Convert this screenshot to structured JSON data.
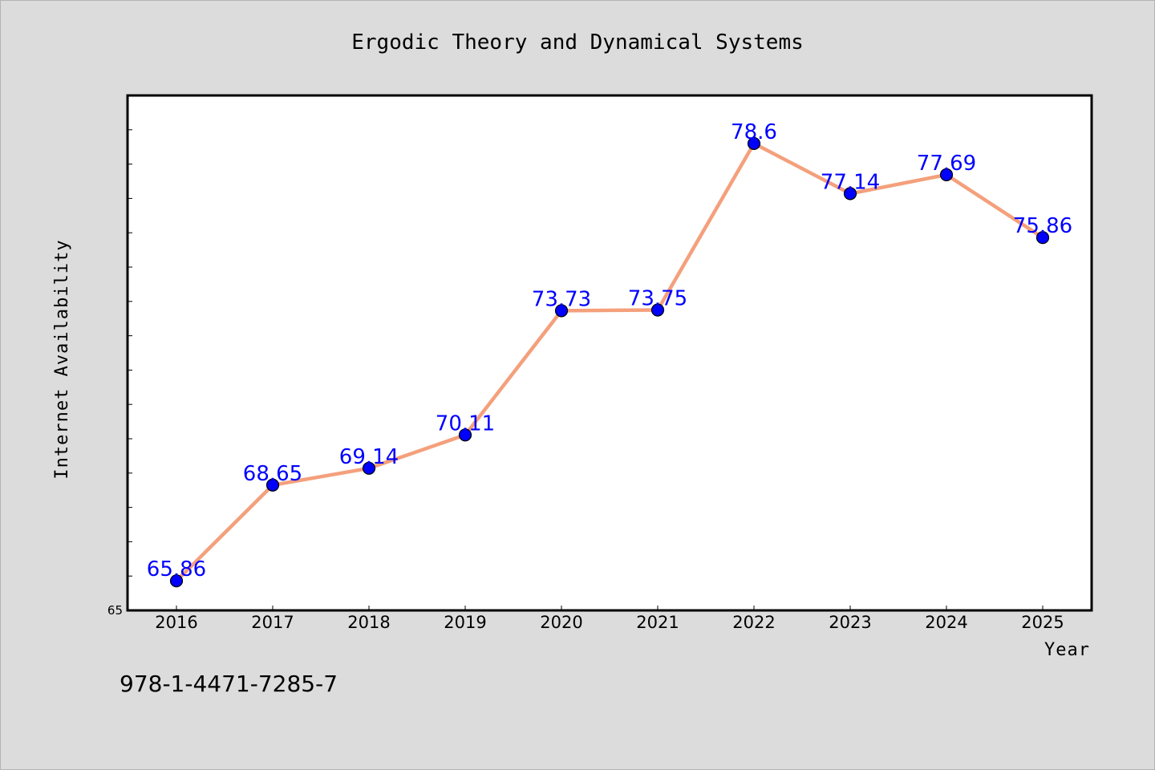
{
  "chart_data": {
    "type": "line",
    "title": "Ergodic Theory and Dynamical Systems",
    "xlabel": "Year",
    "ylabel": "Internet Availability",
    "categories": [
      "2016",
      "2017",
      "2018",
      "2019",
      "2020",
      "2021",
      "2022",
      "2023",
      "2024",
      "2025"
    ],
    "series": [
      {
        "values": [
          65.86,
          68.65,
          69.14,
          70.11,
          73.73,
          73.75,
          78.6,
          77.14,
          77.69,
          75.86
        ],
        "data_labels": [
          "65.86",
          "68.65",
          "69.14",
          "70.11",
          "73.73",
          "73.75",
          "78.6",
          "77.14",
          "77.69",
          "75.86"
        ],
        "line_color": "#f4a07c",
        "marker_color": "#0000ff"
      }
    ],
    "ylim": [
      65,
      80
    ],
    "y_tick_labels": [
      "65"
    ],
    "y_minor_tick_step": 1,
    "grid": false,
    "legend": "none",
    "label_color": "#0000ff"
  },
  "footnote": "978-1-4471-7285-7"
}
